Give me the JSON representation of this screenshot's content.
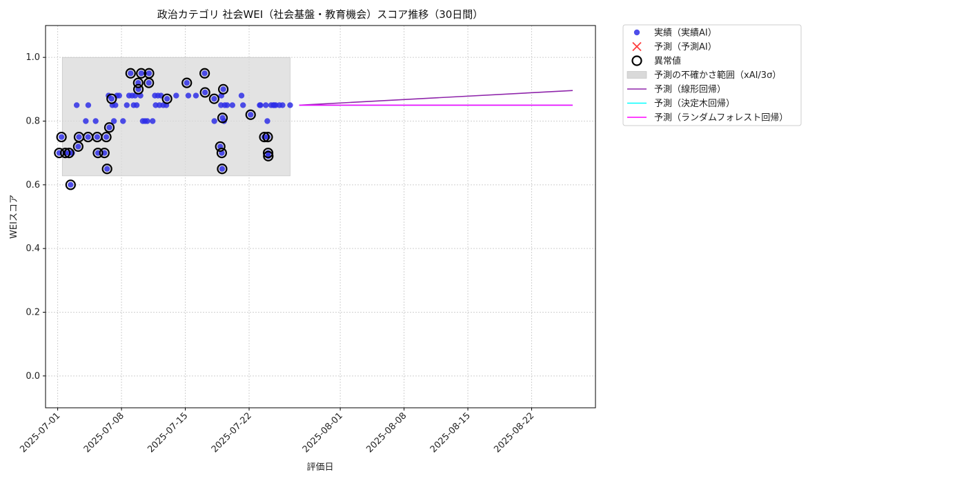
{
  "chart_data": {
    "type": "scatter",
    "title": "政治カテゴリ 社会WEI（社会基盤・教育機会）スコア推移（30日間）",
    "xlabel": "評価日",
    "ylabel": "WEIスコア",
    "xlim": [
      "2025-06-29T16:00",
      "2025-08-29T00:00"
    ],
    "ylim": [
      -0.1,
      1.1
    ],
    "yticks": [
      0.0,
      0.2,
      0.4,
      0.6,
      0.8,
      1.0
    ],
    "ytick_labels": [
      "0.0",
      "0.2",
      "0.4",
      "0.6",
      "0.8",
      "1.0"
    ],
    "xticks": [
      "2025-07-01",
      "2025-07-08",
      "2025-07-15",
      "2025-07-22",
      "2025-08-01",
      "2025-08-08",
      "2025-08-15",
      "2025-08-22"
    ],
    "grid": true,
    "legend_position": "outside-upper-right",
    "colors": {
      "actual": "#2f2fe6",
      "predicted_ai": "#ff3b3b",
      "anomaly": "#000000",
      "uncertainty": "#d9d9d9",
      "linear": "#8e24aa",
      "tree": "#00ffff",
      "forest": "#ff00ff"
    },
    "legend": [
      {
        "key": "actual",
        "label": "実績（実績AI）",
        "marker": "dot"
      },
      {
        "key": "predicted_ai",
        "label": "予測（予測AI）",
        "marker": "x"
      },
      {
        "key": "anomaly",
        "label": "異常値",
        "marker": "ring"
      },
      {
        "key": "uncertainty",
        "label": "予測の不確かさ範囲（xAI/3σ）",
        "marker": "box"
      },
      {
        "key": "linear",
        "label": "予測（線形回帰）",
        "marker": "line"
      },
      {
        "key": "tree",
        "label": "予測（決定木回帰）",
        "marker": "line"
      },
      {
        "key": "forest",
        "label": "予測（ランダムフォレスト回帰）",
        "marker": "line"
      }
    ],
    "uncertainty_band": {
      "x": [
        "2025-07-01T12:00",
        "2025-07-26T12:00"
      ],
      "y": [
        0.628,
        1.0
      ]
    },
    "actual_points": [
      [
        "2025-07-01T04:00",
        0.7
      ],
      [
        "2025-07-01T10:00",
        0.75
      ],
      [
        "2025-07-01T20:00",
        0.7
      ],
      [
        "2025-07-02T06:00",
        0.7
      ],
      [
        "2025-07-02T10:00",
        0.6
      ],
      [
        "2025-07-02T14:00",
        0.7
      ],
      [
        "2025-07-03T02:00",
        0.85
      ],
      [
        "2025-07-03T06:00",
        0.72
      ],
      [
        "2025-07-03T08:00",
        0.75
      ],
      [
        "2025-07-04T02:00",
        0.8
      ],
      [
        "2025-07-04T08:00",
        0.75
      ],
      [
        "2025-07-04T08:30",
        0.85
      ],
      [
        "2025-07-05T04:00",
        0.8
      ],
      [
        "2025-07-05T08:00",
        0.75
      ],
      [
        "2025-07-05T10:00",
        0.7
      ],
      [
        "2025-07-06T03:00",
        0.7
      ],
      [
        "2025-07-06T14:00",
        0.88
      ],
      [
        "2025-07-06T08:00",
        0.75
      ],
      [
        "2025-07-06T10:00",
        0.65
      ],
      [
        "2025-07-06T16:00",
        0.78
      ],
      [
        "2025-07-06T22:00",
        0.87
      ],
      [
        "2025-07-07T00:00",
        0.85
      ],
      [
        "2025-07-07T04:00",
        0.8
      ],
      [
        "2025-07-07T08:00",
        0.85
      ],
      [
        "2025-07-07T12:00",
        0.88
      ],
      [
        "2025-07-07T18:00",
        0.88
      ],
      [
        "2025-07-08T04:00",
        0.8
      ],
      [
        "2025-07-08T14:00",
        0.85
      ],
      [
        "2025-07-09T00:00",
        0.95
      ],
      [
        "2025-07-08T20:00",
        0.88
      ],
      [
        "2025-07-09T04:00",
        0.88
      ],
      [
        "2025-07-09T08:00",
        0.85
      ],
      [
        "2025-07-09T12:00",
        0.88
      ],
      [
        "2025-07-09T16:00",
        0.85
      ],
      [
        "2025-07-09T20:00",
        0.92
      ],
      [
        "2025-07-09T20:30",
        0.9
      ],
      [
        "2025-07-10T04:00",
        0.95
      ],
      [
        "2025-07-10T02:00",
        0.88
      ],
      [
        "2025-07-10T08:00",
        0.8
      ],
      [
        "2025-07-10T14:00",
        0.8
      ],
      [
        "2025-07-11T00:00",
        0.92
      ],
      [
        "2025-07-11T00:30",
        0.95
      ],
      [
        "2025-07-10T20:00",
        0.8
      ],
      [
        "2025-07-11T10:00",
        0.8
      ],
      [
        "2025-07-11T16:00",
        0.88
      ],
      [
        "2025-07-11T18:00",
        0.85
      ],
      [
        "2025-07-12T00:00",
        0.88
      ],
      [
        "2025-07-12T04:00",
        0.85
      ],
      [
        "2025-07-12T08:00",
        0.88
      ],
      [
        "2025-07-12T14:00",
        0.85
      ],
      [
        "2025-07-13T00:00",
        0.87
      ],
      [
        "2025-07-12T22:00",
        0.85
      ],
      [
        "2025-07-14T00:00",
        0.88
      ],
      [
        "2025-07-15T04:00",
        0.92
      ],
      [
        "2025-07-15T08:00",
        0.88
      ],
      [
        "2025-07-16T04:00",
        0.88
      ],
      [
        "2025-07-17T03:00",
        0.95
      ],
      [
        "2025-07-17T04:00",
        0.89
      ],
      [
        "2025-07-18T04:00",
        0.87
      ],
      [
        "2025-07-18T04:30",
        0.8
      ],
      [
        "2025-07-18T20:00",
        0.72
      ],
      [
        "2025-07-18T22:00",
        0.85
      ],
      [
        "2025-07-19T00:00",
        0.7
      ],
      [
        "2025-07-19T01:00",
        0.65
      ],
      [
        "2025-07-19T02:00",
        0.81
      ],
      [
        "2025-07-19T04:00",
        0.9
      ],
      [
        "2025-07-19T06:00",
        0.8
      ],
      [
        "2025-07-19T08:00",
        0.85
      ],
      [
        "2025-07-18T23:00",
        0.88
      ],
      [
        "2025-07-19T14:00",
        0.85
      ],
      [
        "2025-07-20T04:00",
        0.85
      ],
      [
        "2025-07-21T04:00",
        0.88
      ],
      [
        "2025-07-21T08:00",
        0.85
      ],
      [
        "2025-07-22T04:00",
        0.82
      ],
      [
        "2025-07-23T04:00",
        0.85
      ],
      [
        "2025-07-23T06:00",
        0.85
      ],
      [
        "2025-07-23T16:00",
        0.75
      ],
      [
        "2025-07-23T20:00",
        0.85
      ],
      [
        "2025-07-24T00:00",
        0.8
      ],
      [
        "2025-07-24T01:00",
        0.75
      ],
      [
        "2025-07-24T02:00",
        0.7
      ],
      [
        "2025-07-24T02:30",
        0.69
      ],
      [
        "2025-07-24T10:00",
        0.85
      ],
      [
        "2025-07-24T16:00",
        0.85
      ],
      [
        "2025-07-24T22:00",
        0.85
      ],
      [
        "2025-07-25T08:00",
        0.85
      ],
      [
        "2025-07-25T16:00",
        0.85
      ],
      [
        "2025-07-26T12:00",
        0.85
      ],
      [
        "2025-07-24T18:00",
        0.85
      ]
    ],
    "anomaly_points": [
      [
        "2025-07-01T04:00",
        0.7
      ],
      [
        "2025-07-01T10:00",
        0.75
      ],
      [
        "2025-07-01T20:00",
        0.7
      ],
      [
        "2025-07-02T06:00",
        0.7
      ],
      [
        "2025-07-02T10:00",
        0.6
      ],
      [
        "2025-07-03T06:00",
        0.72
      ],
      [
        "2025-07-03T08:00",
        0.75
      ],
      [
        "2025-07-04T08:00",
        0.75
      ],
      [
        "2025-07-05T08:00",
        0.75
      ],
      [
        "2025-07-05T10:00",
        0.7
      ],
      [
        "2025-07-06T03:00",
        0.7
      ],
      [
        "2025-07-06T08:00",
        0.75
      ],
      [
        "2025-07-06T10:00",
        0.65
      ],
      [
        "2025-07-06T16:00",
        0.78
      ],
      [
        "2025-07-06T22:00",
        0.87
      ],
      [
        "2025-07-09T00:00",
        0.95
      ],
      [
        "2025-07-09T20:00",
        0.92
      ],
      [
        "2025-07-09T20:30",
        0.9
      ],
      [
        "2025-07-10T04:00",
        0.95
      ],
      [
        "2025-07-11T00:00",
        0.92
      ],
      [
        "2025-07-11T00:30",
        0.95
      ],
      [
        "2025-07-13T00:00",
        0.87
      ],
      [
        "2025-07-15T04:00",
        0.92
      ],
      [
        "2025-07-17T03:00",
        0.95
      ],
      [
        "2025-07-17T04:00",
        0.89
      ],
      [
        "2025-07-18T04:00",
        0.87
      ],
      [
        "2025-07-18T20:00",
        0.72
      ],
      [
        "2025-07-19T00:00",
        0.7
      ],
      [
        "2025-07-19T01:00",
        0.65
      ],
      [
        "2025-07-19T02:00",
        0.81
      ],
      [
        "2025-07-19T04:00",
        0.9
      ],
      [
        "2025-07-22T04:00",
        0.82
      ],
      [
        "2025-07-23T16:00",
        0.75
      ],
      [
        "2025-07-24T01:00",
        0.75
      ],
      [
        "2025-07-24T02:00",
        0.7
      ],
      [
        "2025-07-24T02:30",
        0.69
      ]
    ],
    "series": [
      {
        "name": "予測（線形回帰）",
        "key": "linear",
        "x": [
          "2025-07-27T12:00",
          "2025-08-26T12:00"
        ],
        "y": [
          0.85,
          0.896
        ]
      },
      {
        "name": "予測（決定木回帰）",
        "key": "tree",
        "x": [
          "2025-07-27T12:00",
          "2025-08-26T12:00"
        ],
        "y": [
          0.85,
          0.85
        ]
      },
      {
        "name": "予測（ランダムフォレスト回帰）",
        "key": "forest",
        "x": [
          "2025-07-27T12:00",
          "2025-08-26T12:00"
        ],
        "y": [
          0.85,
          0.85
        ]
      }
    ]
  }
}
